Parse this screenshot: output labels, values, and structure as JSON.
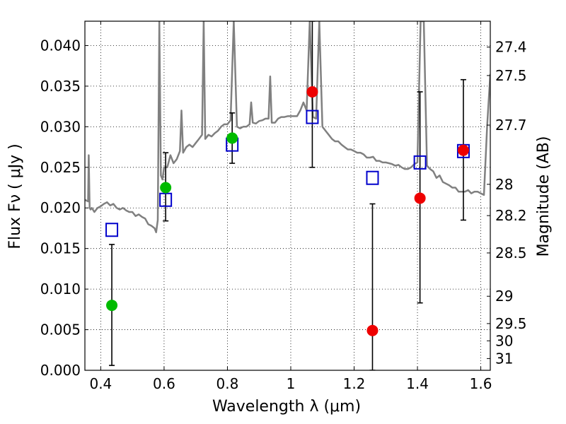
{
  "chart_data": {
    "type": "scatter",
    "xlabel": "Wavelength  λ (μm)",
    "ylabel": "Flux  Fν  ( μJy )",
    "y2label": "Magnitude (AB)",
    "xlim": [
      0.35,
      1.63
    ],
    "ylim": [
      0.0,
      0.043
    ],
    "grid": true,
    "x_ticks": [
      {
        "value": 0.4,
        "label": "0.4"
      },
      {
        "value": 0.6,
        "label": "0.6"
      },
      {
        "value": 0.8,
        "label": "0.8"
      },
      {
        "value": 1.0,
        "label": "1"
      },
      {
        "value": 1.2,
        "label": "1.2"
      },
      {
        "value": 1.4,
        "label": "1.4"
      },
      {
        "value": 1.6,
        "label": "1.6"
      }
    ],
    "y_ticks": [
      {
        "value": 0.0,
        "label": "0.000"
      },
      {
        "value": 0.005,
        "label": "0.005"
      },
      {
        "value": 0.01,
        "label": "0.010"
      },
      {
        "value": 0.015,
        "label": "0.015"
      },
      {
        "value": 0.02,
        "label": "0.020"
      },
      {
        "value": 0.025,
        "label": "0.025"
      },
      {
        "value": 0.03,
        "label": "0.030"
      },
      {
        "value": 0.035,
        "label": "0.035"
      },
      {
        "value": 0.04,
        "label": "0.040"
      }
    ],
    "y2_ticks": [
      {
        "value": 27.4,
        "label": "27.4"
      },
      {
        "value": 27.5,
        "label": "27.5"
      },
      {
        "value": 27.7,
        "label": "27.7"
      },
      {
        "value": 28.0,
        "label": "28"
      },
      {
        "value": 28.2,
        "label": "28.2"
      },
      {
        "value": 28.5,
        "label": "28.5"
      },
      {
        "value": 29.0,
        "label": "29"
      },
      {
        "value": 29.5,
        "label": "29.5"
      },
      {
        "value": 30.0,
        "label": "30"
      },
      {
        "value": 31.0,
        "label": "31"
      }
    ],
    "series": [
      {
        "kind": "line",
        "color": "#808080",
        "x": [
          0.35,
          0.36,
          0.362,
          0.365,
          0.368,
          0.372,
          0.38,
          0.39,
          0.4,
          0.41,
          0.42,
          0.43,
          0.44,
          0.45,
          0.46,
          0.47,
          0.48,
          0.49,
          0.5,
          0.51,
          0.52,
          0.53,
          0.54,
          0.55,
          0.56,
          0.57,
          0.575,
          0.58,
          0.585,
          0.59,
          0.595,
          0.6,
          0.61,
          0.62,
          0.63,
          0.64,
          0.65,
          0.655,
          0.66,
          0.67,
          0.68,
          0.69,
          0.7,
          0.71,
          0.72,
          0.725,
          0.73,
          0.74,
          0.75,
          0.76,
          0.77,
          0.78,
          0.79,
          0.8,
          0.81,
          0.82,
          0.83,
          0.84,
          0.85,
          0.86,
          0.87,
          0.875,
          0.88,
          0.89,
          0.9,
          0.91,
          0.92,
          0.93,
          0.935,
          0.94,
          0.95,
          0.96,
          0.97,
          0.98,
          0.99,
          1.0,
          1.01,
          1.02,
          1.03,
          1.04,
          1.05,
          1.06,
          1.07,
          1.08,
          1.09,
          1.1,
          1.11,
          1.12,
          1.13,
          1.14,
          1.15,
          1.16,
          1.17,
          1.18,
          1.19,
          1.2,
          1.21,
          1.22,
          1.23,
          1.24,
          1.25,
          1.26,
          1.27,
          1.28,
          1.29,
          1.3,
          1.31,
          1.32,
          1.33,
          1.34,
          1.35,
          1.36,
          1.37,
          1.38,
          1.39,
          1.4,
          1.41,
          1.42,
          1.43,
          1.44,
          1.45,
          1.46,
          1.47,
          1.48,
          1.49,
          1.5,
          1.51,
          1.52,
          1.53,
          1.54,
          1.55,
          1.56,
          1.57,
          1.58,
          1.59,
          1.6,
          1.61,
          1.62,
          1.63
        ],
        "values": [
          0.021,
          0.0208,
          0.0265,
          0.02,
          0.0198,
          0.02,
          0.0195,
          0.02,
          0.0202,
          0.0205,
          0.0207,
          0.0203,
          0.0205,
          0.02,
          0.0198,
          0.02,
          0.0197,
          0.0195,
          0.0195,
          0.019,
          0.0192,
          0.0189,
          0.0187,
          0.018,
          0.0178,
          0.0175,
          0.017,
          0.0185,
          0.043,
          0.024,
          0.0235,
          0.025,
          0.025,
          0.0265,
          0.0255,
          0.026,
          0.027,
          0.032,
          0.0268,
          0.0275,
          0.0278,
          0.0275,
          0.028,
          0.0285,
          0.029,
          0.043,
          0.0285,
          0.029,
          0.0288,
          0.0292,
          0.0295,
          0.03,
          0.0303,
          0.0303,
          0.0308,
          0.043,
          0.03,
          0.0298,
          0.03,
          0.03,
          0.0303,
          0.033,
          0.0305,
          0.0304,
          0.0307,
          0.0308,
          0.031,
          0.031,
          0.0362,
          0.0305,
          0.0305,
          0.031,
          0.0312,
          0.0312,
          0.0313,
          0.0313,
          0.0313,
          0.0313,
          0.032,
          0.033,
          0.032,
          0.043,
          0.0312,
          0.031,
          0.043,
          0.03,
          0.0295,
          0.029,
          0.0285,
          0.0282,
          0.0282,
          0.0278,
          0.0275,
          0.0272,
          0.0272,
          0.027,
          0.0268,
          0.0268,
          0.0266,
          0.0262,
          0.0262,
          0.0263,
          0.0258,
          0.0258,
          0.0256,
          0.0256,
          0.0255,
          0.0254,
          0.0252,
          0.0253,
          0.025,
          0.0248,
          0.0248,
          0.025,
          0.0254,
          0.0256,
          0.043,
          0.043,
          0.0252,
          0.0248,
          0.0245,
          0.0237,
          0.024,
          0.0232,
          0.023,
          0.0228,
          0.0225,
          0.0225,
          0.022,
          0.022,
          0.022,
          0.0222,
          0.0218,
          0.022,
          0.022,
          0.0218,
          0.0216,
          0.03,
          0.0365
        ]
      },
      {
        "kind": "open-square",
        "color": "#0000cc",
        "x": [
          0.435,
          0.605,
          0.815,
          1.068,
          1.258,
          1.408,
          1.545
        ],
        "values": [
          0.0173,
          0.021,
          0.0278,
          0.0312,
          0.0237,
          0.0256,
          0.027
        ]
      },
      {
        "kind": "filled-circle",
        "color": "#00bb00",
        "x": [
          0.435,
          0.605,
          0.815
        ],
        "values": [
          0.008,
          0.0225,
          0.0286
        ],
        "err_low": [
          0.0006,
          0.0184,
          0.0255
        ],
        "err_high": [
          0.0155,
          0.0268,
          0.0317
        ]
      },
      {
        "kind": "filled-circle",
        "color": "#ee0000",
        "x": [
          1.068,
          1.258,
          1.408,
          1.545
        ],
        "values": [
          0.0343,
          0.0049,
          0.0212,
          0.0271
        ],
        "err_low": [
          0.025,
          0.0,
          0.0083,
          0.0185
        ],
        "err_high": [
          0.043,
          0.0205,
          0.0343,
          0.0358
        ]
      }
    ]
  }
}
